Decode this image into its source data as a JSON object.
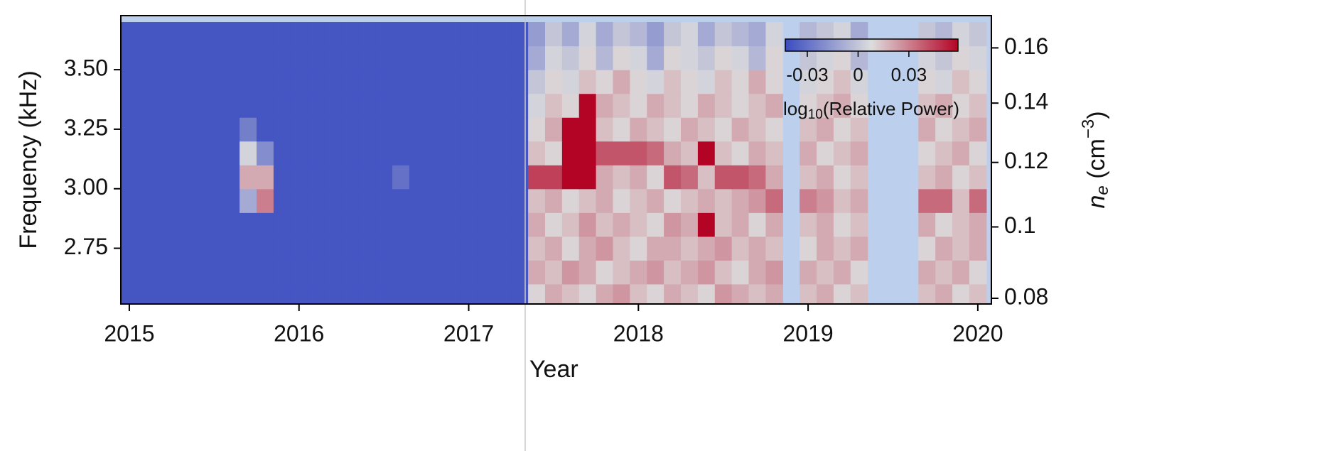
{
  "chart_data": {
    "type": "heatmap",
    "xlabel": "Year",
    "ylabel": "Frequency (kHz)",
    "y2label_parts": [
      "n",
      "e",
      " (cm",
      "−3",
      ")"
    ],
    "colorbar_label_parts": [
      "log",
      "10",
      "(Relative Power)"
    ],
    "xlim": [
      2014.95,
      2020.08
    ],
    "xticks": [
      2015,
      2016,
      2017,
      2018,
      2019,
      2020
    ],
    "ylim": [
      2.516,
      3.727
    ],
    "yticks": [
      {
        "value": 3.5,
        "label": "3.50"
      },
      3.25,
      {
        "value": 3.0,
        "label": "3.00"
      },
      2.75
    ],
    "y2lim": [
      0.0785,
      0.1723
    ],
    "y2scale": "sqrt",
    "y2ticks": [
      0.16,
      0.14,
      0.12,
      0.1,
      0.08
    ],
    "colormap": [
      {
        "value": -0.043,
        "color": "#3b4cc0"
      },
      {
        "value": 0.008,
        "color": "#dddddd"
      },
      {
        "value": 0.059,
        "color": "#b40426"
      }
    ],
    "clim": [
      -0.043,
      0.059
    ],
    "colorbar_ticks": [
      -0.03,
      0,
      0.03
    ],
    "nan_color": "#bccfec",
    "x": [
      2015,
      2015.1,
      2015.2,
      2015.3,
      2015.4,
      2015.5,
      2015.6,
      2015.7,
      2015.8,
      2015.9,
      2016,
      2016.1,
      2016.2,
      2016.3,
      2016.4,
      2016.5,
      2016.6,
      2016.7,
      2016.8,
      2016.9,
      2017,
      2017.1,
      2017.2,
      2017.3,
      2017.4,
      2017.5,
      2017.6,
      2017.7,
      2017.8,
      2017.9,
      2018,
      2018.1,
      2018.2,
      2018.3,
      2018.4,
      2018.5,
      2018.6,
      2018.7,
      2018.8,
      2018.9,
      2019,
      2019.1,
      2019.2,
      2019.3,
      2019.4,
      2019.5,
      2019.6,
      2019.7,
      2019.8,
      2019.9,
      2020
    ],
    "y": [
      2.55,
      2.65,
      2.75,
      2.85,
      2.95,
      3.05,
      3.15,
      3.25,
      3.35,
      3.45,
      3.55,
      3.65
    ],
    "z": [
      [
        -0.04,
        -0.04,
        -0.04,
        -0.04,
        -0.04,
        -0.04,
        -0.04,
        -0.04,
        -0.04,
        -0.04,
        -0.04,
        -0.04,
        -0.04,
        -0.04,
        -0.04,
        -0.04,
        -0.04,
        -0.04,
        -0.04,
        -0.04,
        -0.04,
        -0.04,
        -0.04,
        -0.04,
        0.01,
        0.02,
        0.015,
        0.01,
        0.02,
        0.025,
        0.015,
        0.01,
        0.02,
        0.015,
        0.01,
        0.025,
        0.02,
        0.015,
        0.02,
        null,
        0.015,
        0.02,
        0.01,
        0.015,
        null,
        null,
        null,
        0.015,
        0.02,
        0.01,
        0.015
      ],
      [
        -0.04,
        -0.04,
        -0.04,
        -0.04,
        -0.04,
        -0.04,
        -0.04,
        -0.04,
        -0.04,
        -0.04,
        -0.04,
        -0.04,
        -0.04,
        -0.04,
        -0.04,
        -0.04,
        -0.04,
        -0.04,
        -0.04,
        -0.04,
        -0.04,
        -0.04,
        -0.04,
        -0.04,
        0.02,
        0.015,
        0.025,
        0.02,
        0.01,
        0.015,
        0.02,
        0.025,
        0.015,
        0.02,
        0.025,
        0.015,
        0.01,
        0.02,
        0.025,
        null,
        0.02,
        0.015,
        0.02,
        0.01,
        null,
        null,
        null,
        0.02,
        0.015,
        0.02,
        0.01
      ],
      [
        -0.04,
        -0.04,
        -0.04,
        -0.04,
        -0.04,
        -0.04,
        -0.04,
        -0.04,
        -0.04,
        -0.04,
        -0.04,
        -0.04,
        -0.04,
        -0.04,
        -0.04,
        -0.04,
        -0.04,
        -0.04,
        -0.04,
        -0.04,
        -0.04,
        -0.04,
        -0.04,
        -0.04,
        0.015,
        0.02,
        0.01,
        0.02,
        0.025,
        0.015,
        0.01,
        0.02,
        0.02,
        0.015,
        0.02,
        0.025,
        0.015,
        0.02,
        0.015,
        null,
        0.01,
        0.02,
        0.015,
        0.02,
        null,
        null,
        null,
        0.01,
        0.02,
        0.015,
        0.02
      ],
      [
        -0.04,
        -0.04,
        -0.04,
        -0.04,
        -0.04,
        -0.04,
        -0.04,
        -0.04,
        -0.04,
        -0.04,
        -0.04,
        -0.04,
        -0.04,
        -0.04,
        -0.04,
        -0.04,
        -0.04,
        -0.04,
        -0.04,
        -0.04,
        -0.04,
        -0.04,
        -0.04,
        -0.04,
        0.02,
        0.01,
        0.015,
        0.025,
        0.015,
        0.02,
        0.015,
        0.01,
        0.025,
        0.02,
        0.06,
        0.015,
        0.02,
        0.01,
        0.02,
        null,
        0.015,
        0.02,
        0.01,
        0.015,
        null,
        null,
        null,
        0.02,
        0.01,
        0.015,
        0.02
      ],
      [
        -0.04,
        -0.04,
        -0.04,
        -0.04,
        -0.04,
        -0.04,
        -0.04,
        -0.01,
        0.03,
        -0.04,
        -0.04,
        -0.04,
        -0.04,
        -0.04,
        -0.04,
        -0.04,
        -0.04,
        -0.04,
        -0.04,
        -0.04,
        -0.04,
        -0.04,
        -0.04,
        -0.04,
        0.015,
        0.02,
        0.01,
        0.015,
        0.02,
        0.01,
        0.015,
        0.02,
        0.01,
        0.015,
        0.02,
        0.015,
        0.02,
        0.025,
        0.035,
        null,
        0.03,
        0.025,
        0.015,
        0.02,
        null,
        null,
        null,
        0.035,
        0.035,
        0.015,
        0.035
      ],
      [
        -0.04,
        -0.04,
        -0.04,
        -0.04,
        -0.04,
        -0.04,
        -0.04,
        0.02,
        0.02,
        -0.04,
        -0.04,
        -0.04,
        -0.04,
        -0.04,
        -0.04,
        -0.04,
        -0.03,
        -0.04,
        -0.04,
        -0.04,
        -0.04,
        -0.04,
        -0.04,
        -0.04,
        0.045,
        0.045,
        0.06,
        0.06,
        0.02,
        0.015,
        0.02,
        0.01,
        0.04,
        0.035,
        0.015,
        0.04,
        0.04,
        0.035,
        0.02,
        null,
        0.015,
        0.02,
        0.01,
        0.015,
        null,
        null,
        null,
        0.015,
        0.02,
        0.01,
        0.015
      ],
      [
        -0.04,
        -0.04,
        -0.04,
        -0.04,
        -0.04,
        -0.04,
        -0.04,
        0.005,
        -0.02,
        -0.04,
        -0.04,
        -0.04,
        -0.04,
        -0.04,
        -0.04,
        -0.04,
        -0.04,
        -0.04,
        -0.04,
        -0.04,
        -0.04,
        -0.04,
        -0.04,
        -0.04,
        0.015,
        0.01,
        0.06,
        0.06,
        0.04,
        0.04,
        0.04,
        0.035,
        0.02,
        0.015,
        0.06,
        0.015,
        0.01,
        0.02,
        0.015,
        null,
        0.02,
        0.01,
        0.015,
        0.02,
        null,
        null,
        null,
        0.01,
        0.015,
        0.02,
        0.01
      ],
      [
        -0.04,
        -0.04,
        -0.04,
        -0.04,
        -0.04,
        -0.04,
        -0.04,
        -0.025,
        -0.04,
        -0.04,
        -0.04,
        -0.04,
        -0.04,
        -0.04,
        -0.04,
        -0.04,
        -0.04,
        -0.04,
        -0.04,
        -0.04,
        -0.04,
        -0.04,
        -0.04,
        -0.04,
        0.01,
        0.02,
        0.06,
        0.06,
        0.015,
        0.01,
        0.02,
        0.015,
        0.01,
        0.02,
        0.015,
        0.01,
        0.02,
        0.015,
        0.01,
        null,
        0.015,
        0.02,
        0.01,
        0.015,
        null,
        null,
        null,
        0.02,
        0.01,
        0.015,
        0.02
      ],
      [
        -0.04,
        -0.04,
        -0.04,
        -0.04,
        -0.04,
        -0.04,
        -0.04,
        -0.04,
        -0.04,
        -0.04,
        -0.04,
        -0.04,
        -0.04,
        -0.04,
        -0.04,
        -0.04,
        -0.04,
        -0.04,
        -0.04,
        -0.04,
        -0.04,
        -0.04,
        -0.04,
        -0.04,
        0.005,
        0.015,
        0.01,
        0.06,
        0.02,
        0.015,
        0.01,
        0.02,
        0.015,
        0.01,
        0.02,
        0.015,
        0.01,
        0.015,
        0.02,
        null,
        0.01,
        0.015,
        0.02,
        0.01,
        null,
        null,
        null,
        0.015,
        0.02,
        0.01,
        0.015
      ],
      [
        -0.04,
        -0.04,
        -0.04,
        -0.04,
        -0.04,
        -0.04,
        -0.04,
        -0.04,
        -0.04,
        -0.04,
        -0.04,
        -0.04,
        -0.04,
        -0.04,
        -0.04,
        -0.04,
        -0.04,
        -0.04,
        -0.04,
        -0.04,
        -0.04,
        -0.04,
        -0.04,
        -0.04,
        0,
        0.01,
        0.005,
        0.015,
        0.01,
        0.02,
        0.01,
        0.005,
        0.015,
        0.01,
        0.005,
        0.015,
        0.01,
        0.02,
        0.01,
        null,
        0.005,
        0.01,
        0.015,
        0.005,
        null,
        null,
        null,
        0.01,
        0.005,
        0.015,
        0.01
      ],
      [
        -0.04,
        -0.04,
        -0.04,
        -0.04,
        -0.04,
        -0.04,
        -0.04,
        -0.04,
        -0.04,
        -0.04,
        -0.04,
        -0.04,
        -0.04,
        -0.04,
        -0.04,
        -0.04,
        -0.04,
        -0.04,
        -0.04,
        -0.04,
        -0.04,
        -0.04,
        -0.04,
        -0.04,
        -0.01,
        0.005,
        0,
        0.01,
        -0.005,
        0.01,
        0.005,
        -0.01,
        0.01,
        0.005,
        0,
        0.01,
        0.005,
        -0.005,
        0.01,
        null,
        0,
        0.005,
        0.01,
        -0.005,
        null,
        null,
        null,
        0.005,
        0,
        0.01,
        0.005
      ],
      [
        -0.04,
        -0.04,
        -0.04,
        -0.04,
        -0.04,
        -0.04,
        -0.04,
        -0.04,
        -0.04,
        -0.04,
        -0.04,
        -0.04,
        -0.04,
        -0.04,
        -0.04,
        -0.04,
        -0.04,
        -0.04,
        -0.04,
        -0.04,
        -0.04,
        -0.04,
        -0.04,
        -0.04,
        -0.015,
        0,
        -0.01,
        0.005,
        -0.01,
        0,
        -0.005,
        -0.015,
        0,
        0.005,
        -0.01,
        0,
        -0.005,
        -0.01,
        0.005,
        null,
        -0.005,
        0,
        0.005,
        -0.01,
        null,
        null,
        null,
        0,
        -0.005,
        0.005,
        0
      ]
    ]
  }
}
